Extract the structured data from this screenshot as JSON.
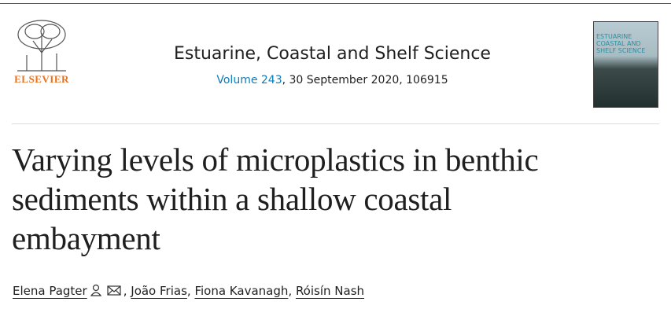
{
  "header": {
    "publisher": "ELSEVIER",
    "journal": "Estuarine, Coastal and Shelf Science",
    "volume": "Volume 243",
    "issue_details": ", 30 September 2020, 106915",
    "cover_title": [
      "ESTUARINE",
      "COASTAL AND",
      "SHELF SCIENCE"
    ]
  },
  "article": {
    "title_lines": [
      "Varying levels of microplastics in benthic",
      "sediments within a shallow coastal",
      "embayment"
    ],
    "authors": [
      "Elena Pagter",
      "João Frias",
      "Fiona Kavanagh",
      "Róisín Nash"
    ],
    "separator": ","
  }
}
